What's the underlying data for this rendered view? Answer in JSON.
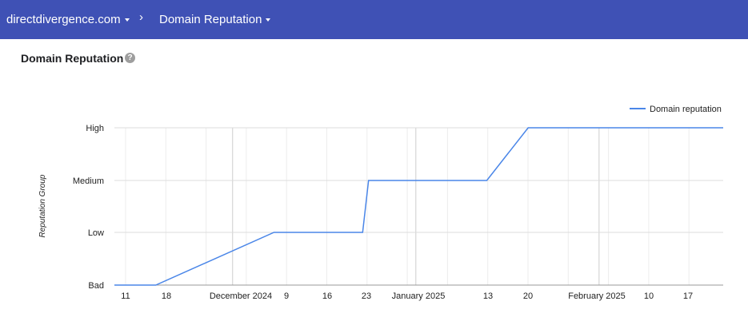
{
  "header": {
    "domain": "directdivergence.com",
    "separator": "›",
    "section": "Domain Reputation"
  },
  "page": {
    "title": "Domain Reputation",
    "help": "?"
  },
  "colors": {
    "header_bg": "#3f51b5",
    "series": "#4a86e8"
  },
  "chart_data": {
    "type": "line",
    "ylabel": "Reputation Group",
    "categories_y": [
      "Bad",
      "Low",
      "Medium",
      "High"
    ],
    "legend": {
      "position": "top-right",
      "label": "Domain reputation"
    },
    "x_ticks": [
      "11",
      "18",
      "December 2024",
      "9",
      "16",
      "23",
      "January 2025",
      "13",
      "20",
      "February 2025",
      "10",
      "17"
    ],
    "series": [
      {
        "name": "Domain reputation",
        "points": [
          {
            "x": "2024-11-11",
            "y": "Bad"
          },
          {
            "x": "2024-11-18",
            "y": "Bad"
          },
          {
            "x": "2024-12-08",
            "y": "Low"
          },
          {
            "x": "2024-12-23",
            "y": "Low"
          },
          {
            "x": "2024-12-24",
            "y": "Medium"
          },
          {
            "x": "2025-01-13",
            "y": "Medium"
          },
          {
            "x": "2025-01-20",
            "y": "High"
          },
          {
            "x": "2025-02-22",
            "y": "High"
          }
        ]
      }
    ]
  }
}
